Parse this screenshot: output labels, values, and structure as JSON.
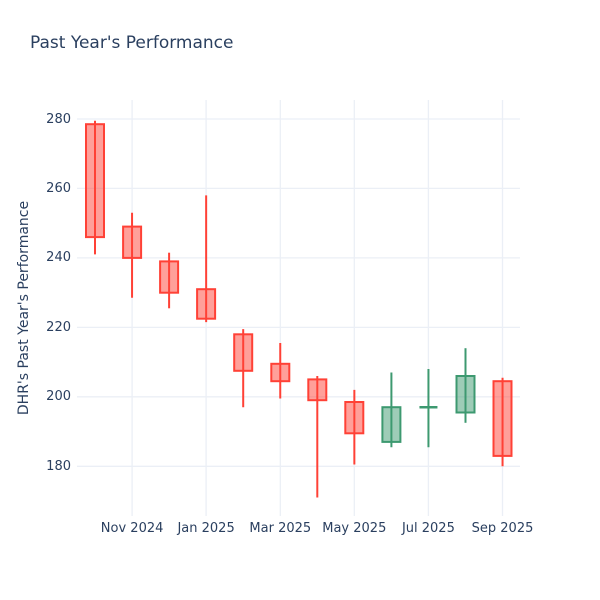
{
  "title": "Past Year's Performance",
  "yaxis_title": "DHR's Past Year's Performance",
  "colors": {
    "text": "#2a3f5f",
    "background": "#ffffff",
    "gridline": "#ebeff6",
    "increasing": "#3D9970",
    "decreasing": "#FF4136",
    "increasing_fill": "#9eccb7",
    "decreasing_fill": "#ffa09a"
  },
  "chart_data": {
    "type": "candlestick",
    "title": "Past Year's Performance",
    "xlabel": "",
    "ylabel": "DHR's Past Year's Performance",
    "categories": [
      "Oct 2024",
      "Nov 2024",
      "Dec 2024",
      "Jan 2025",
      "Feb 2025",
      "Mar 2025",
      "Apr 2025",
      "May 2025",
      "Jun 2025",
      "Jul 2025",
      "Aug 2025",
      "Sep 2025"
    ],
    "open": [
      278.5,
      249,
      239,
      231,
      218,
      209.5,
      205,
      198.5,
      187,
      197,
      195.5,
      204.5
    ],
    "high": [
      279.5,
      253,
      241.5,
      258,
      219.5,
      215.5,
      206,
      202,
      207,
      208,
      214,
      205.5
    ],
    "low": [
      241,
      228.5,
      225.5,
      221.5,
      197,
      199.5,
      171,
      180.5,
      185.5,
      185.5,
      192.5,
      180
    ],
    "close": [
      246,
      240,
      230,
      222.5,
      207.5,
      204.5,
      199,
      189.5,
      197,
      197,
      206,
      183
    ],
    "x_tick_labels": [
      "Nov 2024",
      "Jan 2025",
      "Mar 2025",
      "May 2025",
      "Jul 2025",
      "Sep 2025"
    ],
    "x_tick_indices": [
      1,
      3,
      5,
      7,
      9,
      11
    ],
    "y_ticks": [
      180,
      200,
      220,
      240,
      260,
      280
    ],
    "ylim": [
      165.7,
      285.5
    ],
    "grid": true,
    "legend": "none"
  }
}
